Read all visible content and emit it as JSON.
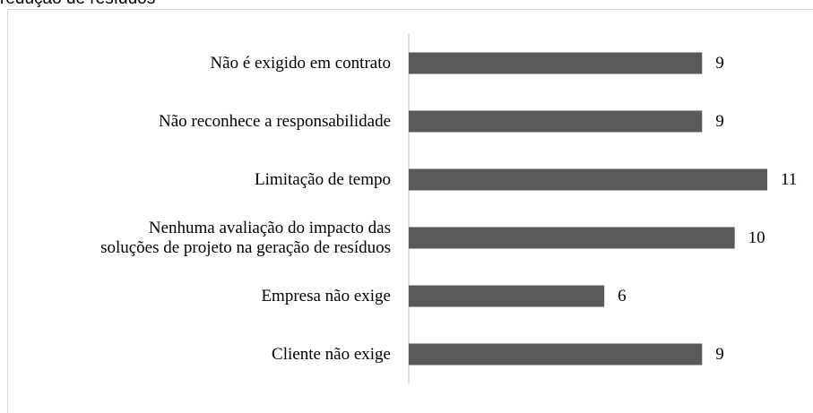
{
  "chart_data": {
    "type": "barh",
    "title": "redução de resíduos",
    "categories": [
      "Não é exigido em contrato",
      "Não reconhece a responsabilidade",
      "Limitação de tempo",
      "Nenhuma avaliação do impacto das\nsoluções de projeto na geração de resíduos",
      "Empresa não exige",
      "Cliente não exige"
    ],
    "values": [
      9,
      9,
      11,
      10,
      6,
      9
    ],
    "color": "#595959"
  }
}
